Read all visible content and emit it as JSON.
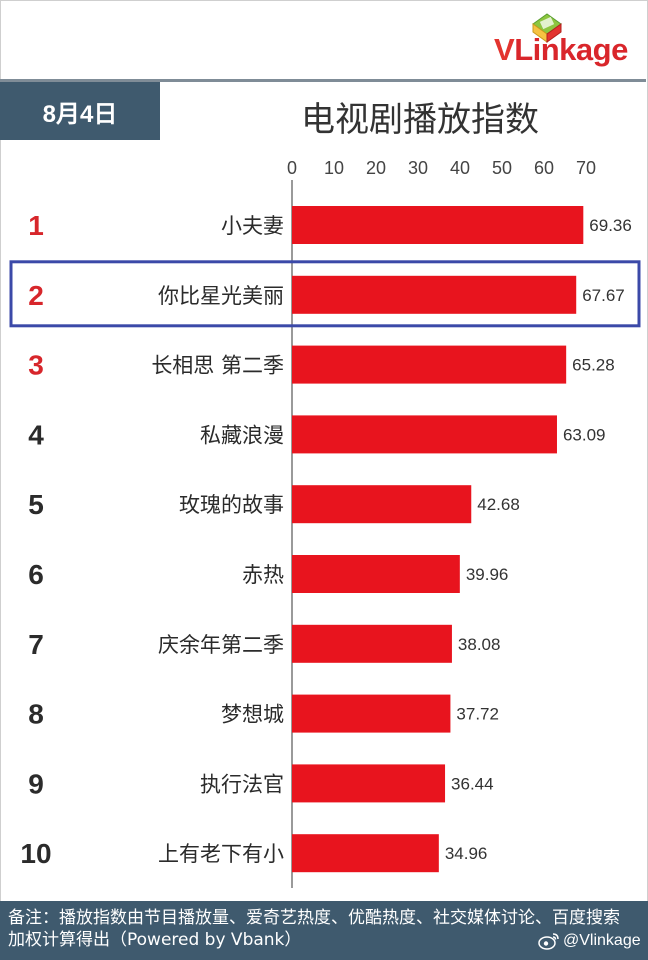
{
  "logo": {
    "text_v": "V",
    "text_rest": "Linkage"
  },
  "date": "8月4日",
  "title": "电视剧播放指数",
  "chart_data": {
    "type": "bar",
    "orientation": "horizontal",
    "title": "电视剧播放指数",
    "xlim": [
      0,
      70
    ],
    "ticks": [
      "0",
      "10",
      "20",
      "30",
      "40",
      "50",
      "60",
      "70"
    ],
    "ranks": [
      "1",
      "2",
      "3",
      "4",
      "5",
      "6",
      "7",
      "8",
      "9",
      "10"
    ],
    "categories": [
      "小夫妻",
      "你比星光美丽",
      "长相思 第二季",
      "私藏浪漫",
      "玫瑰的故事",
      "赤热",
      "庆余年第二季",
      "梦想城",
      "执行法官",
      "上有老下有小"
    ],
    "values": [
      69.36,
      67.67,
      65.28,
      63.09,
      42.68,
      39.96,
      38.08,
      37.72,
      36.44,
      34.96
    ],
    "value_labels": [
      "69.36",
      "67.67",
      "65.28",
      "63.09",
      "42.68",
      "39.96",
      "38.08",
      "37.72",
      "36.44",
      "34.96"
    ],
    "highlighted_rank": "2",
    "bar_color": "#e8141e",
    "highlight_box_color": "#3b49a8",
    "top3_rank_color": "#d7262b",
    "rank_color": "#2b2b2b"
  },
  "footer": {
    "note": "备注：播放指数由节目播放量、爱奇艺热度、优酷热度、社交媒体讨论、百度搜索加权计算得出（Powered by Vbank）",
    "weibo_handle": "@Vlinkage"
  }
}
